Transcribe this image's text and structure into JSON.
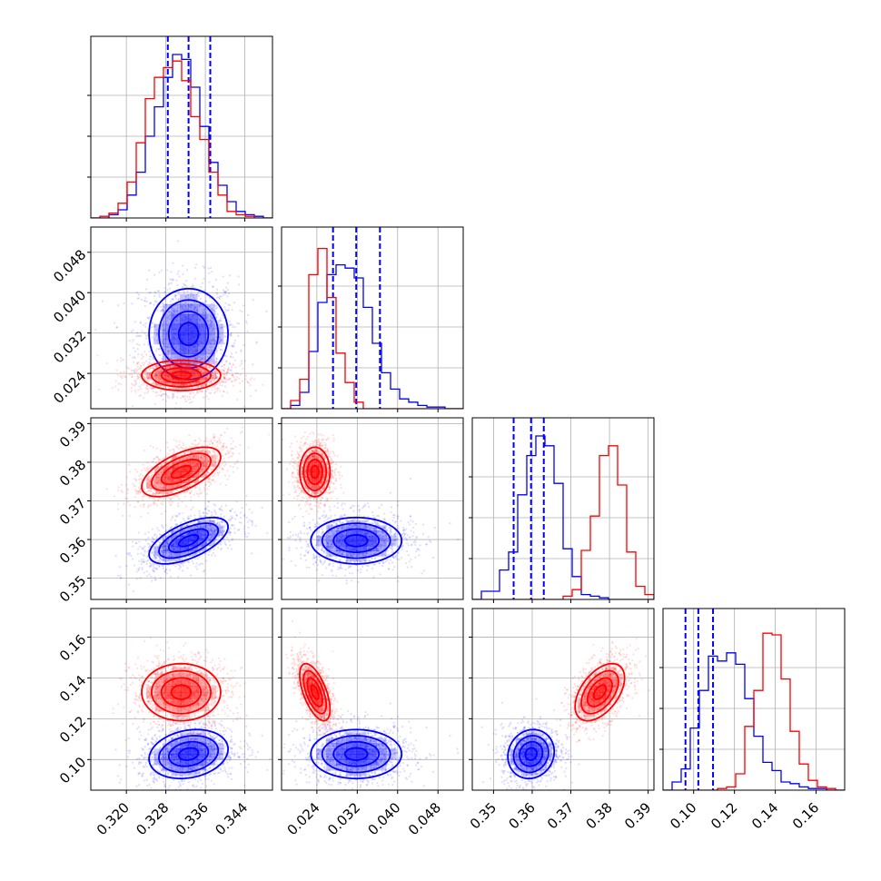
{
  "chart_data": {
    "type": "corner",
    "grid": true,
    "colors": {
      "series_a": "#0000ff",
      "series_b": "#ff0000"
    },
    "params": [
      {
        "range": [
          0.3128,
          0.3496
        ],
        "ticks": [
          0.32,
          0.328,
          0.336,
          0.344
        ],
        "tick_labels": [
          "0.320",
          "0.328",
          "0.336",
          "0.344"
        ]
      },
      {
        "range": [
          0.017,
          0.053
        ],
        "ticks": [
          0.024,
          0.032,
          0.04,
          0.048
        ],
        "tick_labels": [
          "0.024",
          "0.032",
          "0.040",
          "0.048"
        ]
      },
      {
        "range": [
          0.3445,
          0.3915
        ],
        "ticks": [
          0.35,
          0.36,
          0.37,
          0.38,
          0.39
        ],
        "tick_labels": [
          "0.35",
          "0.36",
          "0.37",
          "0.38",
          "0.39"
        ]
      },
      {
        "range": [
          0.085,
          0.174
        ],
        "ticks": [
          0.1,
          0.12,
          0.14,
          0.16
        ],
        "tick_labels": [
          "0.10",
          "0.12",
          "0.14",
          "0.16"
        ]
      }
    ],
    "series": [
      {
        "color": "#0000ff",
        "quantile_lines": true,
        "means": [
          0.3326,
          0.0318,
          0.3597,
          0.1027
        ],
        "sigmas": [
          0.004,
          0.0045,
          0.003,
          0.006
        ],
        "correlations": {
          "0-1": 0.0,
          "0-2": 0.6,
          "0-3": 0.2,
          "1-2": 0.0,
          "1-3": 0.0,
          "2-3": 0.1
        },
        "quantiles": [
          [
            0.3284,
            0.3326,
            0.337
          ],
          [
            0.0272,
            0.0318,
            0.0365
          ],
          [
            0.3552,
            0.3597,
            0.363
          ],
          [
            0.096,
            0.1023,
            0.1095
          ]
        ],
        "histograms": [
          [
            0.0,
            0.0,
            0.02,
            0.05,
            0.14,
            0.28,
            0.5,
            0.68,
            0.86,
            1.0,
            0.97,
            0.8,
            0.56,
            0.34,
            0.2,
            0.1,
            0.04,
            0.02,
            0.01,
            0.0
          ],
          [
            0.0,
            0.02,
            0.1,
            0.35,
            0.65,
            0.82,
            0.88,
            0.86,
            0.8,
            0.62,
            0.4,
            0.22,
            0.12,
            0.06,
            0.04,
            0.02,
            0.01,
            0.01,
            0.0,
            0.0
          ],
          [
            0.0,
            0.05,
            0.05,
            0.18,
            0.29,
            0.64,
            0.88,
            1.0,
            0.94,
            0.71,
            0.31,
            0.14,
            0.03,
            0.02,
            0.01,
            0.0,
            0.0,
            0.0,
            0.0,
            0.0
          ],
          [
            0.0,
            0.05,
            0.13,
            0.38,
            0.61,
            0.82,
            0.79,
            0.84,
            0.77,
            0.56,
            0.33,
            0.17,
            0.12,
            0.05,
            0.04,
            0.02,
            0.01,
            0.01,
            0.0,
            0.0
          ]
        ]
      },
      {
        "color": "#ff0000",
        "quantile_lines": false,
        "means": [
          0.3311,
          0.0236,
          0.3775,
          0.133
        ],
        "sigmas": [
          0.004,
          0.0015,
          0.0032,
          0.007
        ],
        "correlations": {
          "0-1": 0.0,
          "0-2": 0.6,
          "0-3": 0.0,
          "1-2": 0.0,
          "1-3": -0.6,
          "2-3": 0.5
        },
        "histograms": [
          [
            0.0,
            0.01,
            0.03,
            0.09,
            0.22,
            0.46,
            0.73,
            0.86,
            0.92,
            0.96,
            0.84,
            0.62,
            0.48,
            0.28,
            0.14,
            0.04,
            0.02,
            0.01,
            0.0,
            0.0
          ],
          [
            0.0,
            0.05,
            0.18,
            0.82,
            0.98,
            0.68,
            0.34,
            0.16,
            0.04,
            0.0,
            0.0,
            0.0,
            0.0,
            0.0,
            0.0,
            0.0,
            0.0,
            0.0,
            0.0,
            0.0
          ],
          [
            0.0,
            0.0,
            0.0,
            0.0,
            0.0,
            0.0,
            0.0,
            0.0,
            0.0,
            0.0,
            0.02,
            0.06,
            0.3,
            0.51,
            0.88,
            0.94,
            0.7,
            0.29,
            0.08,
            0.03
          ],
          [
            0.0,
            0.0,
            0.0,
            0.0,
            0.0,
            0.0,
            0.01,
            0.02,
            0.1,
            0.39,
            0.61,
            0.96,
            0.95,
            0.68,
            0.36,
            0.16,
            0.06,
            0.02,
            0.01,
            0.0
          ]
        ]
      }
    ]
  }
}
